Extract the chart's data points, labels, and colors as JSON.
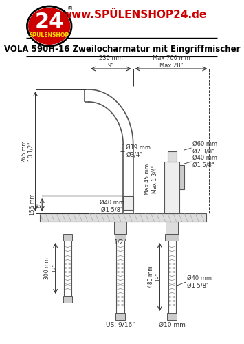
{
  "title": "VOLA 590H-16 Zweilocharmatur mit Eingriffmischer",
  "website": "www.SPÜLENSHOP24.de",
  "bg_color": "#ffffff",
  "line_color": "#555555",
  "text_color": "#333333",
  "logo_red": "#cc0000",
  "logo_yellow": "#ffdd00",
  "header_red": "#cc0000",
  "dims": {
    "horiz_230": "230 mm\n9\"",
    "horiz_700": "Max 700 mm\nMax 28\"",
    "vert_265": "265 mm\n10 1/2\"",
    "vert_155": "155 mm\n6\"",
    "dia19": "Ø19 mm\nØ3/4\"",
    "dia40_spout": "Ø40 mm\nØ1 5/8\"",
    "dia60": "Ø60 mm\nØ2 3/8\"",
    "dia40_right": "Ø40 mm\nØ1 5/8\"",
    "max45": "Max 45 mm\nMax 1 3/4\"",
    "hose300": "300 mm\n12\"",
    "hose480": "480 mm\n19\"",
    "dia40_hose": "Ø40 mm\nØ1 5/8\"",
    "dia10": "Ø10 mm",
    "half_inch": "1/2\"",
    "us916": "US: 9/16\""
  }
}
